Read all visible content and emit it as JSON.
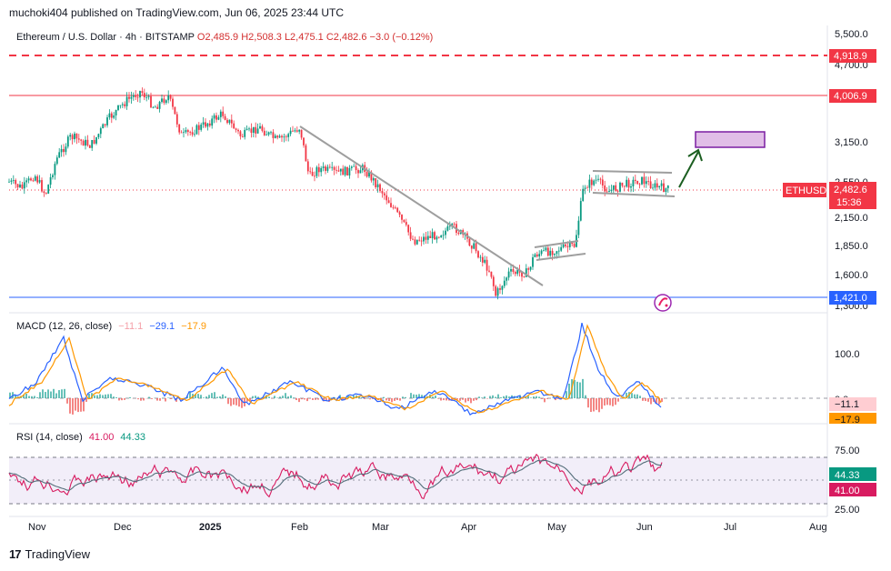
{
  "header": {
    "published": "muchoki404 published on TradingView.com, Jun 06, 2025 23:44 UTC"
  },
  "symbol_line": {
    "name": "Ethereum / U.S. Dollar · 4h · BITSTAMP",
    "open": "O2,485.9",
    "high": "H2,508.3",
    "low": "L2,475.1",
    "close": "C2,482.6",
    "change": "−3.0 (−0.12%)"
  },
  "colors": {
    "red": "#f23645",
    "blue": "#2962ff",
    "orange": "#ff9800",
    "rsi": "#d81b60",
    "green": "#089981",
    "pink_box": "#e1bee7"
  },
  "price_axis": {
    "ticks": [
      "5,500.0",
      "4,700.0",
      "3,150.0",
      "2,550.0",
      "2,150.0",
      "1,850.0",
      "1,600.0",
      "1,300.0"
    ]
  },
  "price_levels": [
    {
      "label": "4,918.9",
      "value": 4918.9,
      "style": "dashed",
      "color": "#f23645"
    },
    {
      "label": "4,006.9",
      "value": 4006.9,
      "style": "solid",
      "color": "#f23645"
    },
    {
      "label": "1,421.0",
      "value": 1421.0,
      "style": "solid",
      "color": "#2962ff"
    }
  ],
  "last_price": {
    "ticker": "ETHUSD",
    "price": "2,482.6",
    "countdown": "15:36"
  },
  "macd": {
    "title": "MACD (12, 26, close)",
    "values": [
      "−11.1",
      "−29.1",
      "−17.9"
    ],
    "axis": [
      "100.0",
      "0.0"
    ],
    "badges": [
      "−11.1",
      "−17.9"
    ]
  },
  "rsi": {
    "title": "RSI (14, close)",
    "values": [
      "41.00",
      "44.33"
    ],
    "axis": [
      "75.00",
      "25.00"
    ],
    "badges": [
      "44.33",
      "41.00"
    ]
  },
  "time_axis": {
    "labels": [
      "Nov",
      "Dec",
      "2025",
      "Feb",
      "Mar",
      "Apr",
      "May",
      "Jun",
      "Jul",
      "Aug"
    ]
  },
  "footer": {
    "brand": "TradingView"
  },
  "chart_data": {
    "type": "line",
    "title": "Ethereum / U.S. Dollar · 4h · BITSTAMP",
    "x": [
      "Nov",
      "Dec",
      "2025",
      "Feb",
      "Mar",
      "Apr",
      "May",
      "Jun",
      "Jul",
      "Aug"
    ],
    "series": [
      {
        "name": "ETHUSD",
        "values": [
          2550,
          3650,
          3350,
          3300,
          2250,
          1550,
          1800,
          2520,
          null,
          null
        ]
      }
    ],
    "ylim": [
      1300,
      5500
    ],
    "grid": false,
    "legend": "top-left"
  }
}
